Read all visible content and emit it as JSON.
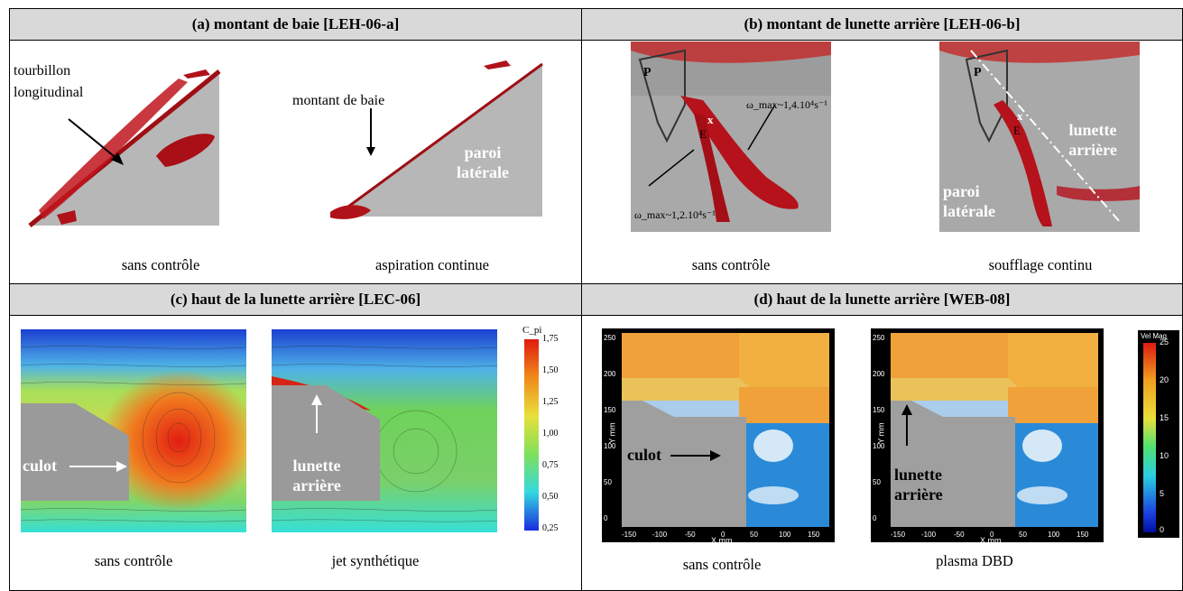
{
  "panels": {
    "a": {
      "header": "(a) montant de baie [LEH-06-a]",
      "captions": [
        "sans contrôle",
        "aspiration continue"
      ],
      "labels": {
        "vortex": "tourbillon\nlongitudinal",
        "pillar": "montant de baie",
        "wall": "paroi\nlatérale"
      }
    },
    "b": {
      "header": "(b) montant de lunette arrière [LEH-06-b]",
      "captions": [
        "sans contrôle",
        "soufflage continu"
      ],
      "labels": {
        "omega1": "ω_max~1,4.10⁴s⁻¹",
        "omega2": "ω_max~1,2.10⁴s⁻¹",
        "P": "P",
        "E": "E",
        "X": "x",
        "rear_window": "lunette\narrière",
        "side_wall": "paroi\nlatérale"
      }
    },
    "c": {
      "header": "(c) haut de la lunette arrière [LEC-06]",
      "captions": [
        "sans contrôle",
        "jet synthétique"
      ],
      "labels": {
        "base": "culot",
        "rear_window": "lunette\narrière",
        "colorbar_title": "C_pi"
      },
      "colorbar_ticks": [
        "1,75",
        "1,50",
        "1,25",
        "1,00",
        "0,75",
        "0,50",
        "0,25"
      ]
    },
    "d": {
      "header": "(d) haut de la lunette arrière [WEB-08]",
      "captions": [
        "sans contrôle",
        "plasma DBD"
      ],
      "labels": {
        "base": "culot",
        "rear_window": "lunette\narrière",
        "colorbar_title": "Vel Mag",
        "xaxis": "X mm",
        "yaxis": "Y mm"
      },
      "colorbar_ticks": [
        "25",
        "20",
        "15",
        "10",
        "5",
        "0"
      ],
      "x_ticks": [
        "-150",
        "-100",
        "-50",
        "0",
        "50",
        "100",
        "150"
      ],
      "y_ticks": [
        "250",
        "200",
        "150",
        "100",
        "50",
        "0"
      ]
    }
  },
  "colors": {
    "header_bg": "#d9d9d9",
    "vortex_red": "#b5121b",
    "wall_gray": "#b3b3b3"
  }
}
